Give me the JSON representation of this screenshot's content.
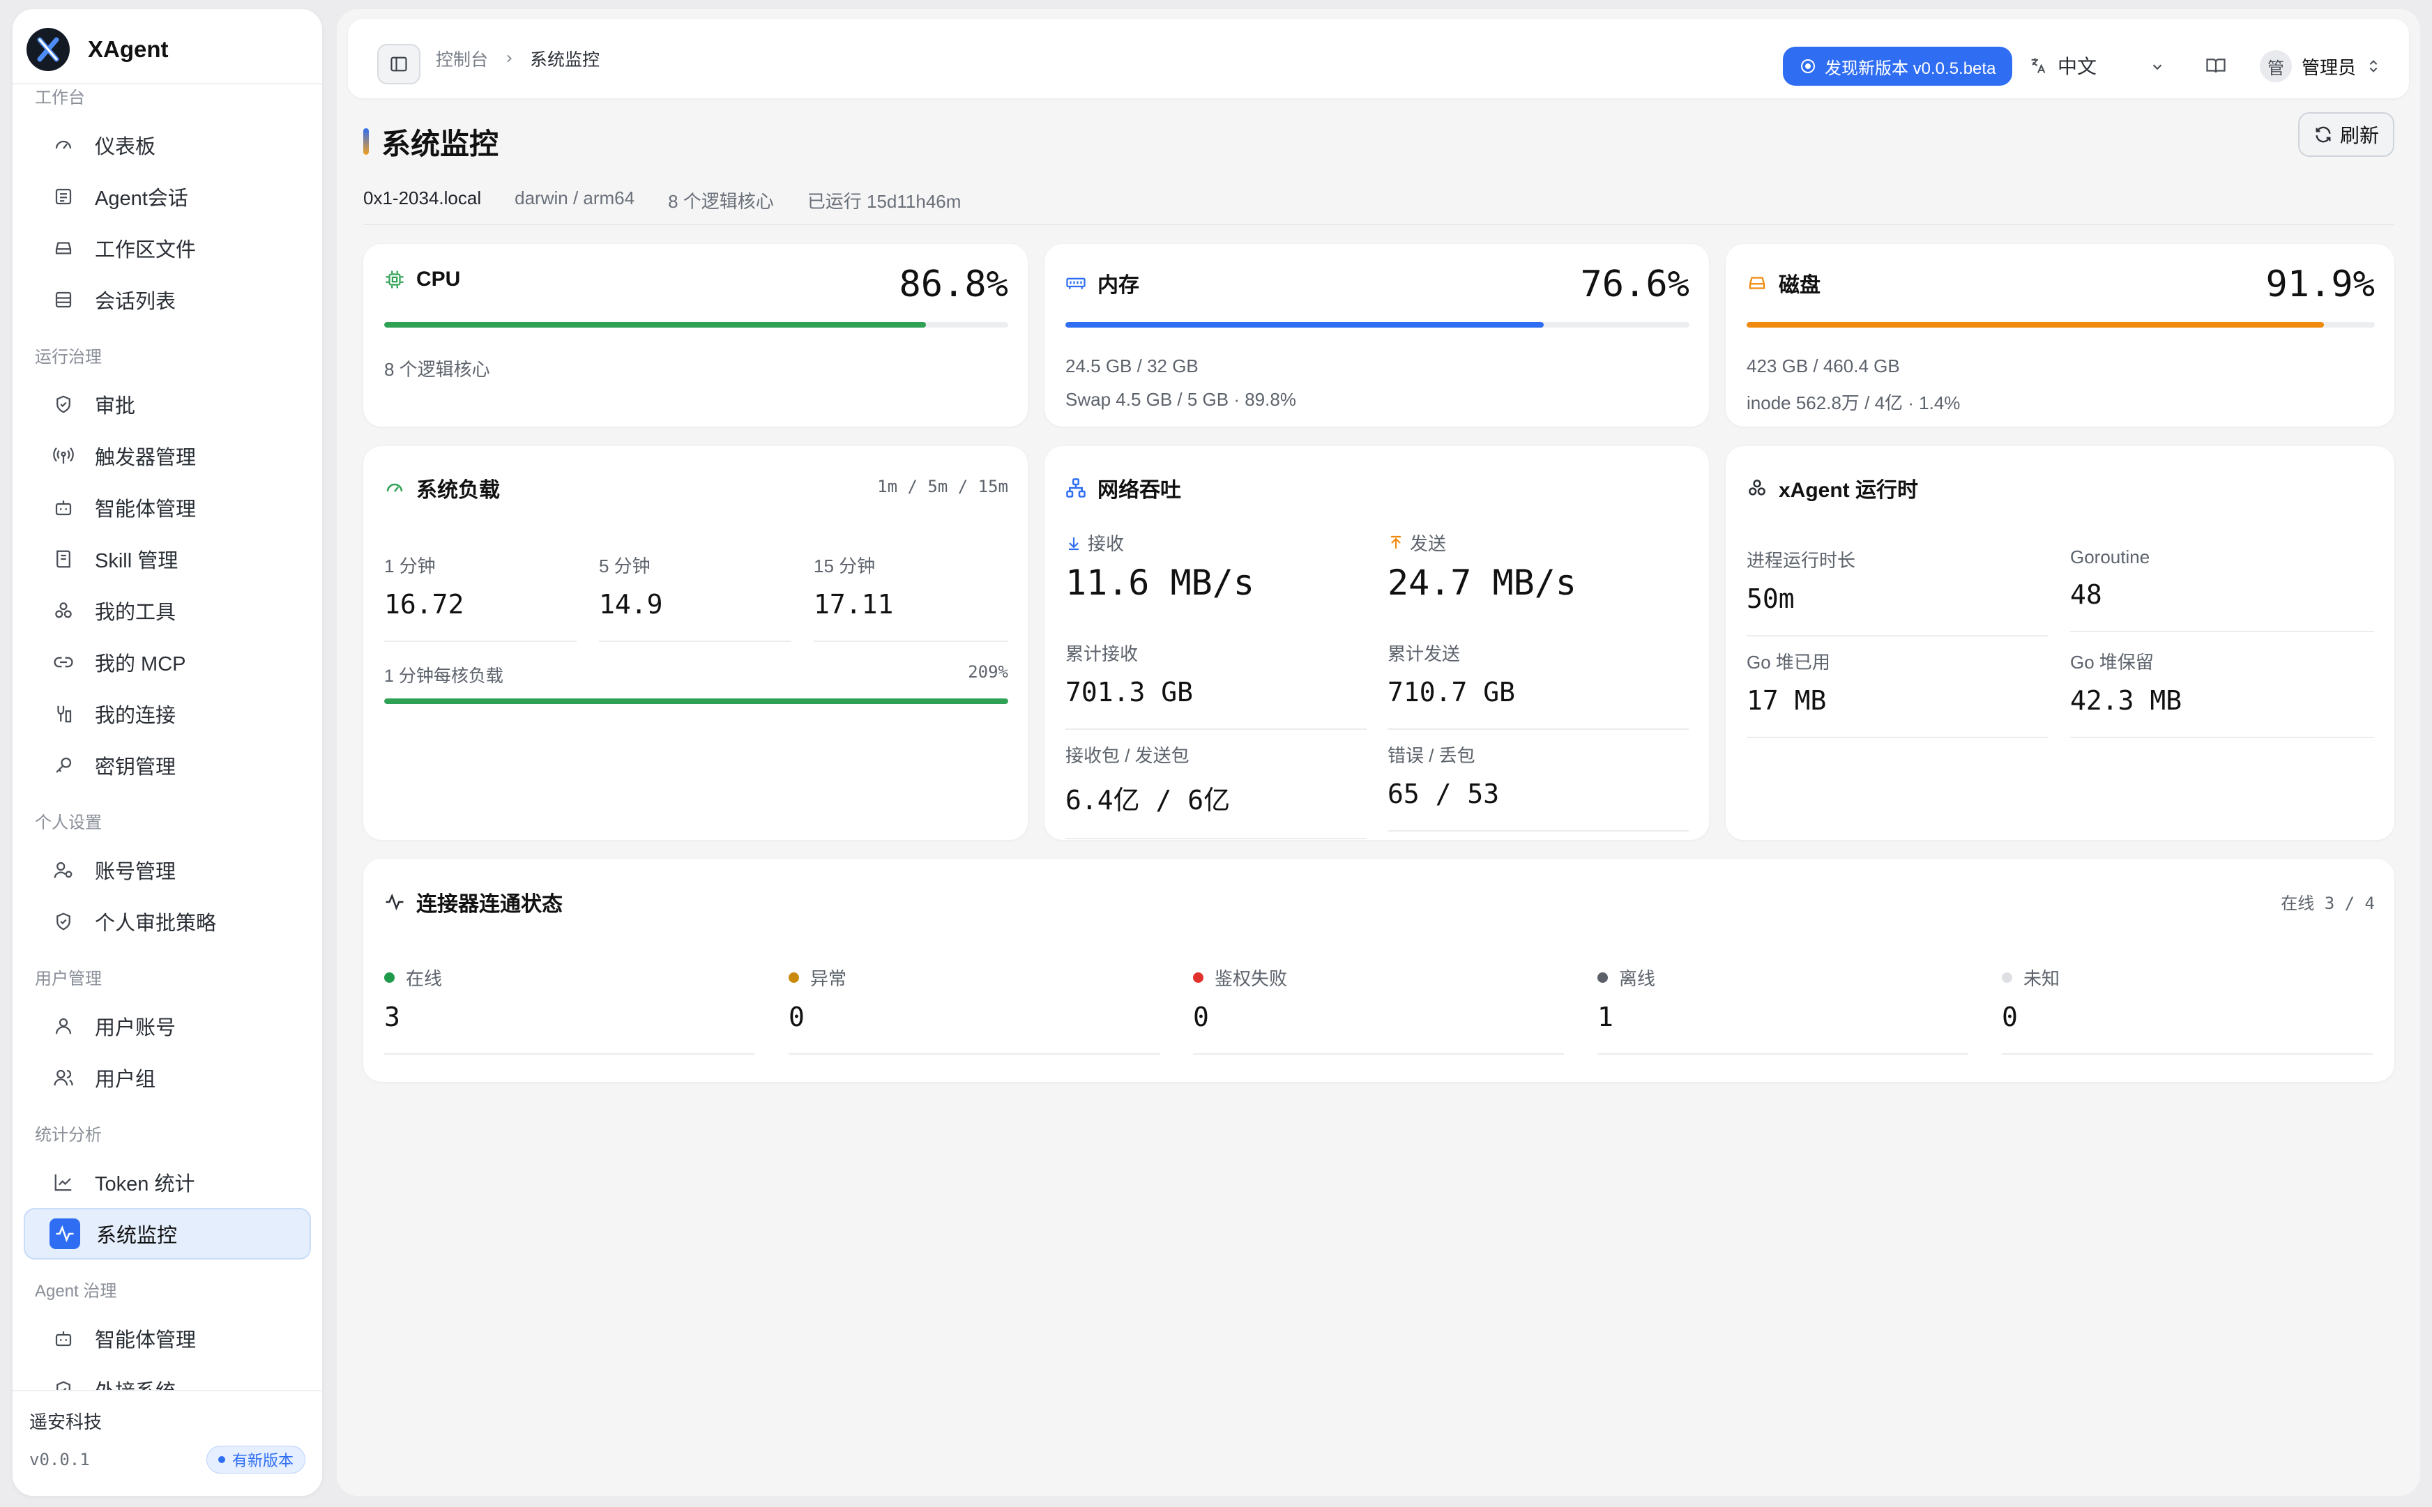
{
  "brand": {
    "name": "XAgent"
  },
  "sidebar": {
    "groups": [
      {
        "label": "工作台",
        "items": [
          {
            "label": "仪表板",
            "icon": "gauge-icon"
          },
          {
            "label": "Agent会话",
            "icon": "chat-list-icon"
          },
          {
            "label": "工作区文件",
            "icon": "drive-icon"
          },
          {
            "label": "会话列表",
            "icon": "list-icon"
          }
        ]
      },
      {
        "label": "运行治理",
        "items": [
          {
            "label": "审批",
            "icon": "shield-check-icon"
          },
          {
            "label": "触发器管理",
            "icon": "broadcast-icon"
          },
          {
            "label": "智能体管理",
            "icon": "bot-icon"
          },
          {
            "label": "Skill 管理",
            "icon": "book-icon"
          },
          {
            "label": "我的工具",
            "icon": "tools-icon"
          },
          {
            "label": "我的 MCP",
            "icon": "link-icon"
          },
          {
            "label": "我的连接",
            "icon": "connection-icon"
          },
          {
            "label": "密钥管理",
            "icon": "key-icon"
          }
        ]
      },
      {
        "label": "个人设置",
        "items": [
          {
            "label": "账号管理",
            "icon": "user-settings-icon"
          },
          {
            "label": "个人审批策略",
            "icon": "shield-check-icon"
          }
        ]
      },
      {
        "label": "用户管理",
        "items": [
          {
            "label": "用户账号",
            "icon": "user-icon"
          },
          {
            "label": "用户组",
            "icon": "users-icon"
          }
        ]
      },
      {
        "label": "统计分析",
        "items": [
          {
            "label": "Token 统计",
            "icon": "chart-line-icon"
          },
          {
            "label": "系统监控",
            "icon": "activity-icon",
            "active": true
          }
        ]
      },
      {
        "label": "Agent 治理",
        "items": [
          {
            "label": "智能体管理",
            "icon": "bot-icon"
          },
          {
            "label": "外接系统",
            "icon": "shield-check-icon"
          }
        ]
      }
    ],
    "footer": {
      "company": "遥安科技",
      "version": "v0.0.1",
      "badge": "有新版本"
    }
  },
  "topbar": {
    "breadcrumb": [
      "控制台",
      "系统监控"
    ],
    "new_version": "发现新版本 v0.0.5.beta",
    "language": "中文",
    "avatar_char": "管",
    "user_name": "管理员"
  },
  "page": {
    "title": "系统监控",
    "refresh": "刷新",
    "host": "0x1-2034.local",
    "os": "darwin / arm64",
    "cores": "8 个逻辑核心",
    "uptime": "已运行 15d11h46m"
  },
  "cpu": {
    "title": "CPU",
    "percent": "86.8%",
    "fill": 0.868,
    "sub1": "8 个逻辑核心",
    "color": "#2fa155"
  },
  "memory": {
    "title": "内存",
    "percent": "76.6%",
    "fill": 0.766,
    "sub1": "24.5 GB / 32 GB",
    "sub2": "Swap 4.5 GB / 5 GB · 89.8%",
    "color": "#2f6ef2"
  },
  "disk": {
    "title": "磁盘",
    "percent": "91.9%",
    "fill": 0.919,
    "sub1": "423 GB / 460.4 GB",
    "sub2": "inode 562.8万 / 4亿 · 1.4%",
    "color": "#f08a0c"
  },
  "load": {
    "title": "系统负载",
    "legend": "1m / 5m / 15m",
    "items": [
      {
        "label": "1 分钟",
        "value": "16.72"
      },
      {
        "label": "5 分钟",
        "value": "14.9"
      },
      {
        "label": "15 分钟",
        "value": "17.11"
      }
    ],
    "per_core_label": "1 分钟每核负载",
    "per_core_value": "209%",
    "per_core_fill": 1.0
  },
  "network": {
    "title": "网络吞吐",
    "rx_label": "接收",
    "rx_value": "11.6 MB/s",
    "tx_label": "发送",
    "tx_value": "24.7 MB/s",
    "total_rx_label": "累计接收",
    "total_rx_value": "701.3 GB",
    "total_tx_label": "累计发送",
    "total_tx_value": "710.7 GB",
    "packets_label": "接收包 / 发送包",
    "packets_value": "6.4亿 / 6亿",
    "errors_label": "错误 / 丢包",
    "errors_value": "65 / 53"
  },
  "runtime": {
    "title": "xAgent 运行时",
    "items": [
      {
        "label": "进程运行时长",
        "value": "50m"
      },
      {
        "label": "Goroutine",
        "value": "48"
      },
      {
        "label": "Go 堆已用",
        "value": "17 MB"
      },
      {
        "label": "Go 堆保留",
        "value": "42.3 MB"
      }
    ]
  },
  "connectors": {
    "title": "连接器连通状态",
    "summary": "在线 3 / 4",
    "statuses": [
      {
        "label": "在线",
        "value": "3",
        "color": "#1f9a4a"
      },
      {
        "label": "异常",
        "value": "0",
        "color": "#c98a0a"
      },
      {
        "label": "鉴权失败",
        "value": "0",
        "color": "#e0312c"
      },
      {
        "label": "离线",
        "value": "1",
        "color": "#5b6069"
      },
      {
        "label": "未知",
        "value": "0",
        "color": "#dddfe3"
      }
    ]
  }
}
